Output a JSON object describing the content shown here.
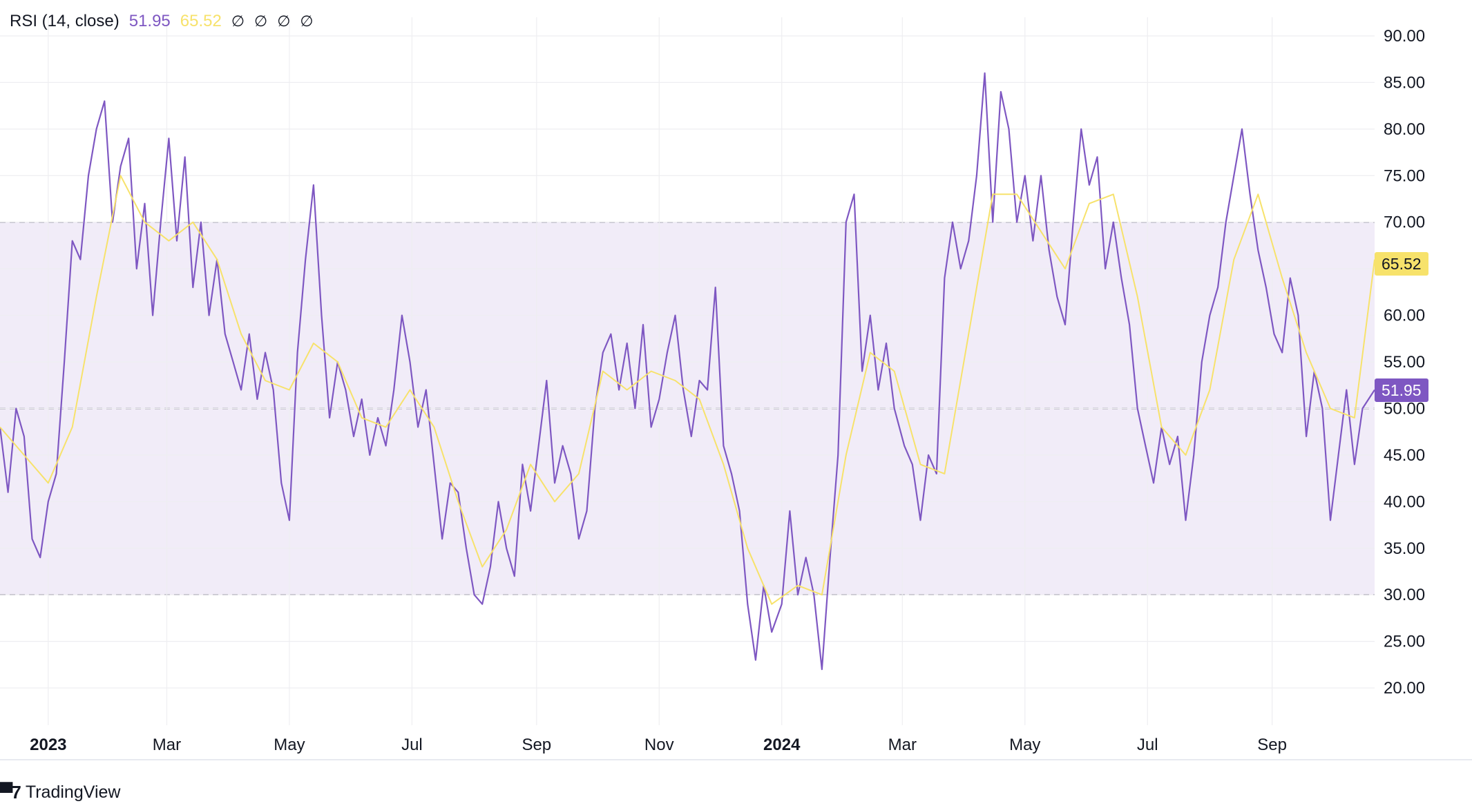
{
  "legend": {
    "indicator": "RSI (14, close)",
    "rsi_value": "51.95",
    "ma_value": "65.52",
    "extra_markers": [
      "∅",
      "∅",
      "∅",
      "∅"
    ]
  },
  "branding": {
    "name": "TradingView"
  },
  "colors": {
    "rsi_line": "#7e57c2",
    "ma_line": "#f7e26b",
    "band_fill": "#f1ecf8",
    "overbought_fill": "#dcefe8",
    "grid": "#eeeef1",
    "dashed": "#5b5b6b",
    "text": "#131722"
  },
  "chart_data": {
    "type": "line",
    "title": "RSI (14, close)",
    "ylim": [
      16,
      92
    ],
    "y_ticks": [
      "90.00",
      "85.00",
      "80.00",
      "75.00",
      "70.00",
      "65.00",
      "60.00",
      "55.00",
      "50.00",
      "45.00",
      "40.00",
      "35.00",
      "30.00",
      "25.00",
      "20.00"
    ],
    "y_tick_values": [
      90,
      85,
      80,
      75,
      70,
      65,
      60,
      55,
      50,
      45,
      40,
      35,
      30,
      25,
      20
    ],
    "x_range": [
      "2022-12-08",
      "2024-10-22"
    ],
    "x_ticks": [
      {
        "label": "2023",
        "date": "2023-01-01",
        "bold": true
      },
      {
        "label": "Mar",
        "date": "2023-03-01",
        "bold": false
      },
      {
        "label": "May",
        "date": "2023-05-01",
        "bold": false
      },
      {
        "label": "Jul",
        "date": "2023-07-01",
        "bold": false
      },
      {
        "label": "Sep",
        "date": "2023-09-01",
        "bold": false
      },
      {
        "label": "Nov",
        "date": "2023-11-01",
        "bold": false
      },
      {
        "label": "2024",
        "date": "2024-01-01",
        "bold": true
      },
      {
        "label": "Mar",
        "date": "2024-03-01",
        "bold": false
      },
      {
        "label": "May",
        "date": "2024-05-01",
        "bold": false
      },
      {
        "label": "Jul",
        "date": "2024-07-01",
        "bold": false
      },
      {
        "label": "Sep",
        "date": "2024-09-01",
        "bold": false
      }
    ],
    "bands": {
      "upper": 70,
      "middle": 50,
      "lower": 30
    },
    "last_values": {
      "rsi": 51.95,
      "ma": 65.52
    },
    "series": [
      {
        "name": "RSI",
        "color": "#7e57c2",
        "points": [
          [
            "2022-12-08",
            48
          ],
          [
            "2022-12-12",
            41
          ],
          [
            "2022-12-16",
            50
          ],
          [
            "2022-12-20",
            47
          ],
          [
            "2022-12-24",
            36
          ],
          [
            "2022-12-28",
            34
          ],
          [
            "2023-01-01",
            40
          ],
          [
            "2023-01-05",
            43
          ],
          [
            "2023-01-09",
            55
          ],
          [
            "2023-01-13",
            68
          ],
          [
            "2023-01-17",
            66
          ],
          [
            "2023-01-21",
            75
          ],
          [
            "2023-01-25",
            80
          ],
          [
            "2023-01-29",
            83
          ],
          [
            "2023-02-02",
            70
          ],
          [
            "2023-02-06",
            76
          ],
          [
            "2023-02-10",
            79
          ],
          [
            "2023-02-14",
            65
          ],
          [
            "2023-02-18",
            72
          ],
          [
            "2023-02-22",
            60
          ],
          [
            "2023-02-26",
            70
          ],
          [
            "2023-03-02",
            79
          ],
          [
            "2023-03-06",
            68
          ],
          [
            "2023-03-10",
            77
          ],
          [
            "2023-03-14",
            63
          ],
          [
            "2023-03-18",
            70
          ],
          [
            "2023-03-22",
            60
          ],
          [
            "2023-03-26",
            66
          ],
          [
            "2023-03-30",
            58
          ],
          [
            "2023-04-03",
            55
          ],
          [
            "2023-04-07",
            52
          ],
          [
            "2023-04-11",
            58
          ],
          [
            "2023-04-15",
            51
          ],
          [
            "2023-04-19",
            56
          ],
          [
            "2023-04-23",
            52
          ],
          [
            "2023-04-27",
            42
          ],
          [
            "2023-05-01",
            38
          ],
          [
            "2023-05-05",
            56
          ],
          [
            "2023-05-09",
            66
          ],
          [
            "2023-05-13",
            74
          ],
          [
            "2023-05-17",
            60
          ],
          [
            "2023-05-21",
            49
          ],
          [
            "2023-05-25",
            55
          ],
          [
            "2023-05-29",
            52
          ],
          [
            "2023-06-02",
            47
          ],
          [
            "2023-06-06",
            51
          ],
          [
            "2023-06-10",
            45
          ],
          [
            "2023-06-14",
            49
          ],
          [
            "2023-06-18",
            46
          ],
          [
            "2023-06-22",
            52
          ],
          [
            "2023-06-26",
            60
          ],
          [
            "2023-06-30",
            55
          ],
          [
            "2023-07-04",
            48
          ],
          [
            "2023-07-08",
            52
          ],
          [
            "2023-07-12",
            44
          ],
          [
            "2023-07-16",
            36
          ],
          [
            "2023-07-20",
            42
          ],
          [
            "2023-07-24",
            41
          ],
          [
            "2023-07-28",
            35
          ],
          [
            "2023-08-01",
            30
          ],
          [
            "2023-08-05",
            29
          ],
          [
            "2023-08-09",
            33
          ],
          [
            "2023-08-13",
            40
          ],
          [
            "2023-08-17",
            35
          ],
          [
            "2023-08-21",
            32
          ],
          [
            "2023-08-25",
            44
          ],
          [
            "2023-08-29",
            39
          ],
          [
            "2023-09-02",
            46
          ],
          [
            "2023-09-06",
            53
          ],
          [
            "2023-09-10",
            42
          ],
          [
            "2023-09-14",
            46
          ],
          [
            "2023-09-18",
            43
          ],
          [
            "2023-09-22",
            36
          ],
          [
            "2023-09-26",
            39
          ],
          [
            "2023-09-30",
            50
          ],
          [
            "2023-10-04",
            56
          ],
          [
            "2023-10-08",
            58
          ],
          [
            "2023-10-12",
            52
          ],
          [
            "2023-10-16",
            57
          ],
          [
            "2023-10-20",
            50
          ],
          [
            "2023-10-24",
            59
          ],
          [
            "2023-10-28",
            48
          ],
          [
            "2023-11-01",
            51
          ],
          [
            "2023-11-05",
            56
          ],
          [
            "2023-11-09",
            60
          ],
          [
            "2023-11-13",
            52
          ],
          [
            "2023-11-17",
            47
          ],
          [
            "2023-11-21",
            53
          ],
          [
            "2023-11-25",
            52
          ],
          [
            "2023-11-29",
            63
          ],
          [
            "2023-12-03",
            46
          ],
          [
            "2023-12-07",
            43
          ],
          [
            "2023-12-11",
            39
          ],
          [
            "2023-12-15",
            29
          ],
          [
            "2023-12-19",
            23
          ],
          [
            "2023-12-23",
            31
          ],
          [
            "2023-12-27",
            26
          ],
          [
            "2024-01-01",
            29
          ],
          [
            "2024-01-05",
            39
          ],
          [
            "2024-01-09",
            30
          ],
          [
            "2024-01-13",
            34
          ],
          [
            "2024-01-17",
            30
          ],
          [
            "2024-01-21",
            22
          ],
          [
            "2024-01-25",
            34
          ],
          [
            "2024-01-29",
            45
          ],
          [
            "2024-02-02",
            70
          ],
          [
            "2024-02-06",
            73
          ],
          [
            "2024-02-10",
            54
          ],
          [
            "2024-02-14",
            60
          ],
          [
            "2024-02-18",
            52
          ],
          [
            "2024-02-22",
            57
          ],
          [
            "2024-02-26",
            50
          ],
          [
            "2024-03-02",
            46
          ],
          [
            "2024-03-06",
            44
          ],
          [
            "2024-03-10",
            38
          ],
          [
            "2024-03-14",
            45
          ],
          [
            "2024-03-18",
            43
          ],
          [
            "2024-03-22",
            64
          ],
          [
            "2024-03-26",
            70
          ],
          [
            "2024-03-30",
            65
          ],
          [
            "2024-04-03",
            68
          ],
          [
            "2024-04-07",
            75
          ],
          [
            "2024-04-11",
            86
          ],
          [
            "2024-04-15",
            70
          ],
          [
            "2024-04-19",
            84
          ],
          [
            "2024-04-23",
            80
          ],
          [
            "2024-04-27",
            70
          ],
          [
            "2024-05-01",
            75
          ],
          [
            "2024-05-05",
            68
          ],
          [
            "2024-05-09",
            75
          ],
          [
            "2024-05-13",
            67
          ],
          [
            "2024-05-17",
            62
          ],
          [
            "2024-05-21",
            59
          ],
          [
            "2024-05-25",
            70
          ],
          [
            "2024-05-29",
            80
          ],
          [
            "2024-06-02",
            74
          ],
          [
            "2024-06-06",
            77
          ],
          [
            "2024-06-10",
            65
          ],
          [
            "2024-06-14",
            70
          ],
          [
            "2024-06-18",
            64
          ],
          [
            "2024-06-22",
            59
          ],
          [
            "2024-06-26",
            50
          ],
          [
            "2024-06-30",
            46
          ],
          [
            "2024-07-04",
            42
          ],
          [
            "2024-07-08",
            48
          ],
          [
            "2024-07-12",
            44
          ],
          [
            "2024-07-16",
            47
          ],
          [
            "2024-07-20",
            38
          ],
          [
            "2024-07-24",
            45
          ],
          [
            "2024-07-28",
            55
          ],
          [
            "2024-08-01",
            60
          ],
          [
            "2024-08-05",
            63
          ],
          [
            "2024-08-09",
            70
          ],
          [
            "2024-08-13",
            75
          ],
          [
            "2024-08-17",
            80
          ],
          [
            "2024-08-21",
            73
          ],
          [
            "2024-08-25",
            67
          ],
          [
            "2024-08-29",
            63
          ],
          [
            "2024-09-02",
            58
          ],
          [
            "2024-09-06",
            56
          ],
          [
            "2024-09-10",
            64
          ],
          [
            "2024-09-14",
            60
          ],
          [
            "2024-09-18",
            47
          ],
          [
            "2024-09-22",
            54
          ],
          [
            "2024-09-26",
            50
          ],
          [
            "2024-09-30",
            38
          ],
          [
            "2024-10-04",
            45
          ],
          [
            "2024-10-08",
            52
          ],
          [
            "2024-10-12",
            44
          ],
          [
            "2024-10-16",
            50
          ],
          [
            "2024-10-22",
            52
          ]
        ]
      },
      {
        "name": "RSI-based MA",
        "color": "#f7e26b",
        "points": [
          [
            "2022-12-08",
            48
          ],
          [
            "2022-12-20",
            45
          ],
          [
            "2023-01-01",
            42
          ],
          [
            "2023-01-13",
            48
          ],
          [
            "2023-01-25",
            62
          ],
          [
            "2023-02-06",
            75
          ],
          [
            "2023-02-18",
            70
          ],
          [
            "2023-03-02",
            68
          ],
          [
            "2023-03-14",
            70
          ],
          [
            "2023-03-26",
            66
          ],
          [
            "2023-04-07",
            58
          ],
          [
            "2023-04-19",
            53
          ],
          [
            "2023-05-01",
            52
          ],
          [
            "2023-05-13",
            57
          ],
          [
            "2023-05-25",
            55
          ],
          [
            "2023-06-06",
            49
          ],
          [
            "2023-06-18",
            48
          ],
          [
            "2023-06-30",
            52
          ],
          [
            "2023-07-12",
            48
          ],
          [
            "2023-07-24",
            40
          ],
          [
            "2023-08-05",
            33
          ],
          [
            "2023-08-17",
            37
          ],
          [
            "2023-08-29",
            44
          ],
          [
            "2023-09-10",
            40
          ],
          [
            "2023-09-22",
            43
          ],
          [
            "2023-10-04",
            54
          ],
          [
            "2023-10-16",
            52
          ],
          [
            "2023-10-28",
            54
          ],
          [
            "2023-11-09",
            53
          ],
          [
            "2023-11-21",
            51
          ],
          [
            "2023-12-03",
            44
          ],
          [
            "2023-12-15",
            35
          ],
          [
            "2023-12-27",
            29
          ],
          [
            "2024-01-09",
            31
          ],
          [
            "2024-01-21",
            30
          ],
          [
            "2024-02-02",
            45
          ],
          [
            "2024-02-14",
            56
          ],
          [
            "2024-02-26",
            54
          ],
          [
            "2024-03-10",
            44
          ],
          [
            "2024-03-22",
            43
          ],
          [
            "2024-04-03",
            58
          ],
          [
            "2024-04-15",
            73
          ],
          [
            "2024-04-27",
            73
          ],
          [
            "2024-05-09",
            69
          ],
          [
            "2024-05-21",
            65
          ],
          [
            "2024-06-02",
            72
          ],
          [
            "2024-06-14",
            73
          ],
          [
            "2024-06-26",
            62
          ],
          [
            "2024-07-08",
            48
          ],
          [
            "2024-07-20",
            45
          ],
          [
            "2024-08-01",
            52
          ],
          [
            "2024-08-13",
            66
          ],
          [
            "2024-08-25",
            73
          ],
          [
            "2024-09-06",
            64
          ],
          [
            "2024-09-18",
            56
          ],
          [
            "2024-09-30",
            50
          ],
          [
            "2024-10-12",
            49
          ],
          [
            "2024-10-22",
            66
          ]
        ]
      }
    ]
  }
}
